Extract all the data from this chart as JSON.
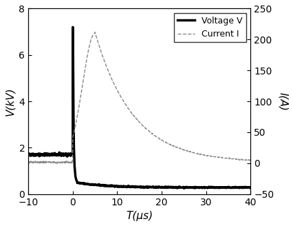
{
  "title": "",
  "xlabel": "T(μs)",
  "ylabel_left": "V(kV)",
  "ylabel_right": "I(A)",
  "xlim": [
    -10,
    40
  ],
  "ylim_left": [
    0,
    8
  ],
  "ylim_right": [
    -50,
    250
  ],
  "yticks_left": [
    0,
    2,
    4,
    6,
    8
  ],
  "yticks_right": [
    -50,
    0,
    50,
    100,
    150,
    200,
    250
  ],
  "xticks": [
    -10,
    0,
    10,
    20,
    30,
    40
  ],
  "voltage_color": "#000000",
  "current_color": "#888888",
  "voltage_linewidth": 2.5,
  "current_linewidth": 1.0,
  "legend_voltage": "Voltage V",
  "legend_current": "Current I",
  "background_color": "#ffffff",
  "figsize": [
    4.26,
    3.28
  ],
  "dpi": 100
}
